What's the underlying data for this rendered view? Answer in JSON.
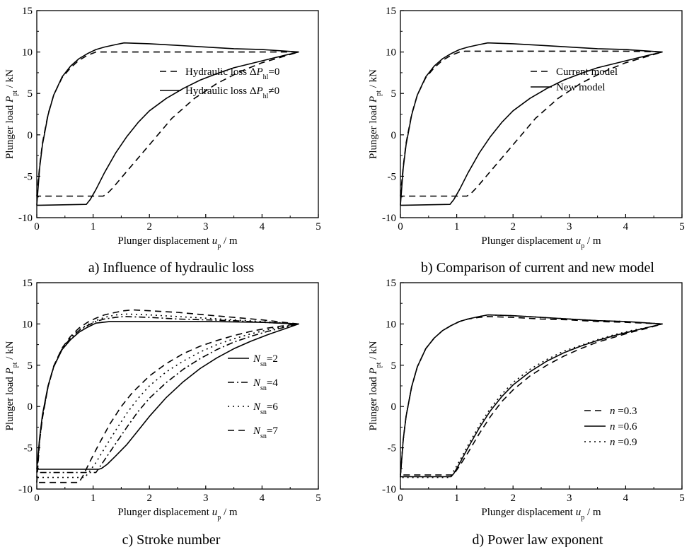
{
  "figure": {
    "panels": [
      {
        "caption": "a) Influence of hydraulic loss"
      },
      {
        "caption": "b) Comparison of current and new model"
      },
      {
        "caption": "c) Stroke number"
      },
      {
        "caption": "d) Power law exponent"
      }
    ]
  },
  "chart_data": [
    {
      "type": "line",
      "title": "a) Influence of hydraulic loss",
      "xlabel": {
        "text": "Plunger displacement ",
        "var": "u",
        "sub": "p",
        "unit": " / m"
      },
      "ylabel": {
        "text": "Plunger load ",
        "var": "P",
        "sub": "pt",
        "unit": " / kN"
      },
      "xlim": [
        0,
        5
      ],
      "ylim": [
        -10,
        15
      ],
      "xticks": [
        "0",
        "1",
        "2",
        "3",
        "4",
        "5"
      ],
      "yticks": [
        "-10",
        "-5",
        "0",
        "5",
        "10",
        "15"
      ],
      "legend": {
        "placement": "center-right"
      },
      "series": [
        {
          "label": {
            "text": "Hydraulic loss  Δ",
            "var": "P",
            "sub": "hl",
            "tail": "=0"
          },
          "dash": "dashed",
          "x": [
            0,
            0.05,
            0.1,
            0.2,
            0.3,
            0.45,
            0.6,
            0.75,
            0.9,
            1.05,
            1.15,
            1.3,
            2,
            3,
            4,
            4.65,
            4.3,
            4.0,
            3.6,
            3.2,
            2.8,
            2.4,
            2.0,
            1.7,
            1.5,
            1.35,
            1.25,
            1.18,
            0.05,
            0.0
          ],
          "y": [
            -7.4,
            -3.8,
            -1.0,
            2.5,
            4.8,
            6.9,
            8.1,
            9.0,
            9.6,
            10.0,
            10.0,
            10.0,
            10.0,
            10.0,
            10.0,
            10.0,
            9.3,
            8.7,
            7.6,
            6.2,
            4.4,
            2.0,
            -1.2,
            -3.6,
            -5.2,
            -6.4,
            -7.1,
            -7.4,
            -7.4,
            -7.4
          ]
        },
        {
          "label": {
            "text": "Hydraulic loss  Δ",
            "var": "P",
            "sub": "hl",
            "tail": "≠0"
          },
          "dash": "solid",
          "x": [
            0,
            0.05,
            0.1,
            0.2,
            0.3,
            0.45,
            0.6,
            0.75,
            0.9,
            1.05,
            1.2,
            1.4,
            1.55,
            2,
            2.5,
            3,
            3.5,
            4,
            4.65,
            4.4,
            4.1,
            3.8,
            3.5,
            3.2,
            2.9,
            2.6,
            2.3,
            2.0,
            1.8,
            1.6,
            1.4,
            1.2,
            1.05,
            0.95,
            0.88,
            0.05,
            0.0
          ],
          "y": [
            -8.5,
            -4.0,
            -1.2,
            2.4,
            4.8,
            7.0,
            8.3,
            9.2,
            9.8,
            10.3,
            10.6,
            10.9,
            11.1,
            11.0,
            10.8,
            10.6,
            10.4,
            10.3,
            10.0,
            9.6,
            9.1,
            8.6,
            8.1,
            7.4,
            6.6,
            5.6,
            4.4,
            2.9,
            1.5,
            -0.2,
            -2.2,
            -4.6,
            -6.6,
            -7.8,
            -8.4,
            -8.5,
            -8.5
          ]
        }
      ]
    },
    {
      "type": "line",
      "title": "b) Comparison of current and new model",
      "xlabel": {
        "text": "Plunger displacement ",
        "var": "u",
        "sub": "p",
        "unit": " / m"
      },
      "ylabel": {
        "text": "Plunger load ",
        "var": "P",
        "sub": "pt",
        "unit": " / kN"
      },
      "xlim": [
        0,
        5
      ],
      "ylim": [
        -10,
        15
      ],
      "xticks": [
        "0",
        "1",
        "2",
        "3",
        "4",
        "5"
      ],
      "yticks": [
        "-10",
        "-5",
        "0",
        "5",
        "10",
        "15"
      ],
      "legend": {
        "placement": "center-right"
      },
      "series": [
        {
          "label": {
            "text": "Current model"
          },
          "dash": "dashed",
          "x": [
            0,
            0.05,
            0.1,
            0.2,
            0.3,
            0.45,
            0.6,
            0.75,
            0.9,
            1.05,
            1.15,
            1.3,
            2,
            3,
            4,
            4.65,
            4.3,
            4.0,
            3.6,
            3.2,
            2.8,
            2.4,
            2.0,
            1.7,
            1.5,
            1.35,
            1.25,
            1.18,
            0.05,
            0.0
          ],
          "y": [
            -7.4,
            -3.8,
            -1.0,
            2.5,
            4.8,
            6.9,
            8.1,
            9.0,
            9.6,
            10.0,
            10.1,
            10.1,
            10.1,
            10.1,
            10.1,
            10.0,
            9.3,
            8.7,
            7.6,
            6.2,
            4.4,
            2.0,
            -1.2,
            -3.6,
            -5.2,
            -6.4,
            -7.1,
            -7.4,
            -7.4,
            -7.4
          ]
        },
        {
          "label": {
            "text": "New model"
          },
          "dash": "solid",
          "x": [
            0,
            0.05,
            0.1,
            0.2,
            0.3,
            0.45,
            0.6,
            0.75,
            0.9,
            1.05,
            1.2,
            1.4,
            1.55,
            2,
            2.5,
            3,
            3.5,
            4,
            4.65,
            4.4,
            4.1,
            3.8,
            3.5,
            3.2,
            2.9,
            2.6,
            2.3,
            2.0,
            1.8,
            1.6,
            1.4,
            1.2,
            1.05,
            0.95,
            0.88,
            0.05,
            0.0
          ],
          "y": [
            -8.5,
            -4.0,
            -1.2,
            2.4,
            4.8,
            7.0,
            8.3,
            9.2,
            9.8,
            10.3,
            10.6,
            10.9,
            11.1,
            11.0,
            10.8,
            10.6,
            10.4,
            10.3,
            10.0,
            9.6,
            9.1,
            8.6,
            8.1,
            7.4,
            6.6,
            5.6,
            4.4,
            2.9,
            1.5,
            -0.2,
            -2.2,
            -4.6,
            -6.6,
            -7.8,
            -8.4,
            -8.5,
            -8.5
          ]
        }
      ]
    },
    {
      "type": "line",
      "title": "c) Stroke number",
      "xlabel": {
        "text": "Plunger displacement ",
        "var": "u",
        "sub": "p",
        "unit": " / m"
      },
      "ylabel": {
        "text": "Plunger load ",
        "var": "P",
        "sub": "pt",
        "unit": " / kN"
      },
      "xlim": [
        0,
        5
      ],
      "ylim": [
        -10,
        15
      ],
      "xticks": [
        "0",
        "1",
        "2",
        "3",
        "4",
        "5"
      ],
      "yticks": [
        "-10",
        "-5",
        "0",
        "5",
        "10",
        "15"
      ],
      "legend": {
        "placement": "center-right"
      },
      "series": [
        {
          "label": {
            "var": "N",
            "sub": "sn",
            "tail": "=2"
          },
          "dash": "solid",
          "x": [
            0,
            0.05,
            0.1,
            0.2,
            0.3,
            0.45,
            0.6,
            0.75,
            0.9,
            1.05,
            1.3,
            2,
            3,
            4,
            4.65,
            4.4,
            4.1,
            3.8,
            3.5,
            3.2,
            2.9,
            2.6,
            2.3,
            2.0,
            1.8,
            1.6,
            1.4,
            1.25,
            1.15,
            1.1,
            0.05,
            0.0
          ],
          "y": [
            -7.6,
            -3.8,
            -1.0,
            2.5,
            4.8,
            6.9,
            8.1,
            9.0,
            9.6,
            10.1,
            10.3,
            10.3,
            10.3,
            10.2,
            10.0,
            9.4,
            8.7,
            7.9,
            7.0,
            5.9,
            4.6,
            3.0,
            1.1,
            -1.2,
            -2.9,
            -4.6,
            -6.0,
            -7.0,
            -7.5,
            -7.6,
            -7.6,
            -7.6
          ]
        },
        {
          "label": {
            "var": "N",
            "sub": "sn",
            "tail": "=4"
          },
          "dash": "dashdot",
          "x": [
            0,
            0.05,
            0.1,
            0.2,
            0.3,
            0.45,
            0.6,
            0.75,
            0.9,
            1.05,
            1.2,
            1.4,
            1.55,
            2,
            2.5,
            3,
            3.5,
            4,
            4.65,
            4.4,
            4.1,
            3.8,
            3.5,
            3.2,
            2.9,
            2.6,
            2.3,
            2.0,
            1.8,
            1.6,
            1.4,
            1.25,
            1.12,
            1.05,
            0.05,
            0.0
          ],
          "y": [
            -8.0,
            -4.0,
            -1.2,
            2.4,
            4.8,
            7.0,
            8.3,
            9.2,
            9.8,
            10.3,
            10.6,
            10.8,
            10.9,
            10.8,
            10.6,
            10.5,
            10.4,
            10.2,
            10.0,
            9.6,
            9.1,
            8.5,
            7.8,
            6.9,
            5.8,
            4.5,
            2.9,
            1.0,
            -0.6,
            -2.5,
            -4.5,
            -6.0,
            -7.3,
            -8.0,
            -8.0,
            -8.0
          ]
        },
        {
          "label": {
            "var": "N",
            "sub": "sn",
            "tail": "=6"
          },
          "dash": "dotted",
          "x": [
            0,
            0.05,
            0.1,
            0.2,
            0.3,
            0.45,
            0.6,
            0.75,
            0.9,
            1.05,
            1.2,
            1.4,
            1.6,
            2,
            2.5,
            3,
            3.5,
            4,
            4.65,
            4.4,
            4.1,
            3.8,
            3.5,
            3.2,
            2.9,
            2.6,
            2.3,
            2.0,
            1.8,
            1.6,
            1.4,
            1.2,
            1.05,
            0.9,
            0.85,
            0.05,
            0.0
          ],
          "y": [
            -8.6,
            -4.1,
            -1.3,
            2.4,
            4.8,
            7.0,
            8.4,
            9.3,
            9.9,
            10.4,
            10.8,
            11.1,
            11.2,
            11.1,
            10.9,
            10.7,
            10.5,
            10.3,
            10.0,
            9.7,
            9.3,
            8.8,
            8.2,
            7.5,
            6.6,
            5.5,
            4.2,
            2.5,
            1.0,
            -0.8,
            -2.9,
            -5.1,
            -6.8,
            -8.2,
            -8.6,
            -8.6,
            -8.6
          ]
        },
        {
          "label": {
            "var": "N",
            "sub": "sn",
            "tail": "=7"
          },
          "dash": "dashed",
          "x": [
            0,
            0.05,
            0.1,
            0.2,
            0.3,
            0.45,
            0.6,
            0.75,
            0.9,
            1.05,
            1.2,
            1.4,
            1.55,
            1.7,
            2,
            2.5,
            3,
            3.5,
            4,
            4.65,
            4.4,
            4.1,
            3.8,
            3.5,
            3.2,
            2.9,
            2.6,
            2.3,
            2.0,
            1.7,
            1.5,
            1.3,
            1.1,
            0.95,
            0.82,
            0.75,
            0.05,
            0.0
          ],
          "y": [
            -9.2,
            -4.2,
            -1.4,
            2.4,
            4.9,
            7.1,
            8.5,
            9.5,
            10.2,
            10.7,
            11.1,
            11.4,
            11.6,
            11.7,
            11.6,
            11.4,
            11.1,
            10.8,
            10.5,
            10.0,
            9.8,
            9.5,
            9.1,
            8.6,
            8.0,
            7.3,
            6.4,
            5.2,
            3.7,
            1.7,
            0.0,
            -2.1,
            -4.6,
            -6.6,
            -8.4,
            -9.2,
            -9.2,
            -9.2
          ]
        }
      ]
    },
    {
      "type": "line",
      "title": "d) Power law exponent",
      "xlabel": {
        "text": "Plunger displacement ",
        "var": "u",
        "sub": "p",
        "unit": " / m"
      },
      "ylabel": {
        "text": "Plunger load ",
        "var": "P",
        "sub": "pt",
        "unit": " / kN"
      },
      "xlim": [
        0,
        5
      ],
      "ylim": [
        -10,
        15
      ],
      "xticks": [
        "0",
        "1",
        "2",
        "3",
        "4",
        "5"
      ],
      "yticks": [
        "-10",
        "-5",
        "0",
        "5",
        "10",
        "15"
      ],
      "legend": {
        "placement": "center-right"
      },
      "series": [
        {
          "label": {
            "var": "n",
            "tail": " =0.3"
          },
          "dash": "dashed",
          "x": [
            0,
            0.05,
            0.1,
            0.2,
            0.3,
            0.45,
            0.6,
            0.75,
            0.9,
            1.05,
            1.2,
            1.4,
            1.55,
            2,
            2.5,
            3,
            3.5,
            4,
            4.65,
            4.4,
            4.1,
            3.8,
            3.5,
            3.2,
            2.9,
            2.6,
            2.3,
            2.0,
            1.8,
            1.6,
            1.4,
            1.2,
            1.05,
            0.97,
            0.92,
            0.05,
            0.0
          ],
          "y": [
            -8.3,
            -4.0,
            -1.2,
            2.4,
            4.8,
            7.0,
            8.3,
            9.2,
            9.8,
            10.3,
            10.6,
            10.8,
            10.9,
            10.8,
            10.6,
            10.5,
            10.3,
            10.2,
            10.0,
            9.5,
            9.0,
            8.4,
            7.8,
            7.0,
            6.1,
            5.0,
            3.7,
            2.0,
            0.6,
            -1.2,
            -3.3,
            -5.6,
            -7.2,
            -8.0,
            -8.3,
            -8.3,
            -8.3
          ]
        },
        {
          "label": {
            "var": "n",
            "tail": " =0.6"
          },
          "dash": "solid",
          "x": [
            0,
            0.05,
            0.1,
            0.2,
            0.3,
            0.45,
            0.6,
            0.75,
            0.9,
            1.05,
            1.2,
            1.4,
            1.55,
            2,
            2.5,
            3,
            3.5,
            4,
            4.65,
            4.4,
            4.1,
            3.8,
            3.5,
            3.2,
            2.9,
            2.6,
            2.3,
            2.0,
            1.8,
            1.6,
            1.4,
            1.2,
            1.05,
            0.95,
            0.9,
            0.05,
            0.0
          ],
          "y": [
            -8.5,
            -4.0,
            -1.2,
            2.4,
            4.8,
            7.0,
            8.3,
            9.2,
            9.8,
            10.3,
            10.6,
            10.9,
            11.1,
            11.0,
            10.8,
            10.6,
            10.4,
            10.3,
            10.0,
            9.6,
            9.1,
            8.6,
            8.0,
            7.3,
            6.5,
            5.5,
            4.2,
            2.6,
            1.2,
            -0.5,
            -2.6,
            -5.0,
            -6.9,
            -8.1,
            -8.5,
            -8.5,
            -8.5
          ]
        },
        {
          "label": {
            "var": "n",
            "tail": " =0.9"
          },
          "dash": "dotted",
          "x": [
            0,
            0.05,
            0.1,
            0.2,
            0.3,
            0.45,
            0.6,
            0.75,
            0.9,
            1.05,
            1.2,
            1.4,
            1.55,
            2,
            2.5,
            3,
            3.5,
            4,
            4.65,
            4.4,
            4.1,
            3.8,
            3.5,
            3.2,
            2.9,
            2.6,
            2.3,
            2.0,
            1.8,
            1.6,
            1.4,
            1.2,
            1.05,
            0.93,
            0.88,
            0.05,
            0.0
          ],
          "y": [
            -8.6,
            -4.0,
            -1.2,
            2.4,
            4.8,
            7.0,
            8.3,
            9.2,
            9.8,
            10.3,
            10.6,
            10.9,
            11.1,
            11.0,
            10.8,
            10.6,
            10.4,
            10.3,
            10.0,
            9.6,
            9.2,
            8.7,
            8.1,
            7.4,
            6.7,
            5.7,
            4.5,
            2.9,
            1.5,
            -0.2,
            -2.3,
            -4.7,
            -6.6,
            -8.0,
            -8.6,
            -8.6,
            -8.6
          ]
        }
      ]
    }
  ]
}
